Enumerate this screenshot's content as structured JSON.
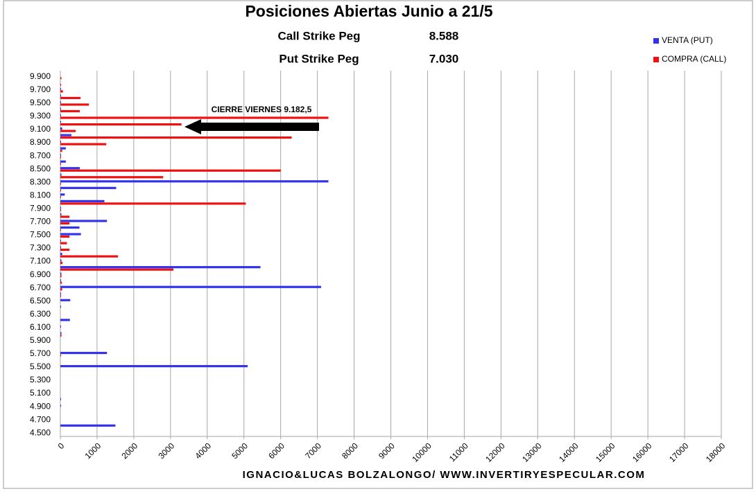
{
  "chart_data": {
    "type": "hbar",
    "title": "Posiciones Abiertas Junio a 21/5",
    "info": [
      {
        "label": "Call Strike Peg",
        "value": "8.588"
      },
      {
        "label": "Put Strike Peg",
        "value": "7.030"
      }
    ],
    "annotation": "CIERRE VIERNES 9.182,5",
    "footer": "IGNACIO&LUCAS BOLZALONGO/ WWW.INVERTIRYESPECULAR.COM",
    "categories": [
      "4.500",
      null,
      "4.700",
      null,
      "4.900",
      null,
      "5.100",
      null,
      "5.300",
      null,
      "5.500",
      null,
      "5.700",
      null,
      "5.900",
      null,
      "6.100",
      null,
      "6.300",
      null,
      "6.500",
      null,
      "6.700",
      null,
      "6.900",
      null,
      "7.100",
      null,
      "7.300",
      null,
      "7.500",
      null,
      "7.700",
      null,
      "7.900",
      null,
      "8.100",
      null,
      "8.300",
      null,
      "8.500",
      null,
      "8.700",
      null,
      "8.900",
      null,
      "9.100",
      null,
      "9.300",
      null,
      "9.500",
      null,
      "9.700",
      null,
      "9.900"
    ],
    "series": [
      {
        "name": "VENTA (PUT)",
        "color": "#3333ee",
        "values": [
          0,
          1500,
          0,
          0,
          20,
          20,
          0,
          0,
          0,
          0,
          5100,
          0,
          1270,
          0,
          0,
          30,
          20,
          260,
          0,
          20,
          270,
          20,
          7100,
          20,
          30,
          5450,
          30,
          50,
          20,
          20,
          560,
          520,
          1270,
          30,
          20,
          1200,
          120,
          1520,
          7300,
          30,
          530,
          150,
          20,
          150,
          20,
          300,
          50,
          20,
          20,
          20,
          20,
          20,
          20,
          0,
          0
        ]
      },
      {
        "name": "COMPRA (CALL)",
        "color": "#ee1111",
        "values": [
          0,
          0,
          0,
          0,
          0,
          0,
          0,
          0,
          0,
          0,
          0,
          0,
          20,
          0,
          0,
          30,
          0,
          0,
          0,
          0,
          0,
          20,
          50,
          40,
          30,
          3080,
          60,
          1570,
          250,
          180,
          250,
          20,
          250,
          250,
          20,
          5050,
          20,
          20,
          20,
          2800,
          6000,
          20,
          20,
          50,
          1250,
          6300,
          420,
          3300,
          7300,
          530,
          780,
          550,
          70,
          20,
          30
        ]
      }
    ],
    "xlim": [
      0,
      18000
    ],
    "xticks": [
      0,
      1000,
      2000,
      3000,
      4000,
      5000,
      6000,
      7000,
      8000,
      9000,
      10000,
      11000,
      12000,
      13000,
      14000,
      15000,
      16000,
      17000,
      18000
    ],
    "grid": true,
    "legend": "top-right"
  }
}
